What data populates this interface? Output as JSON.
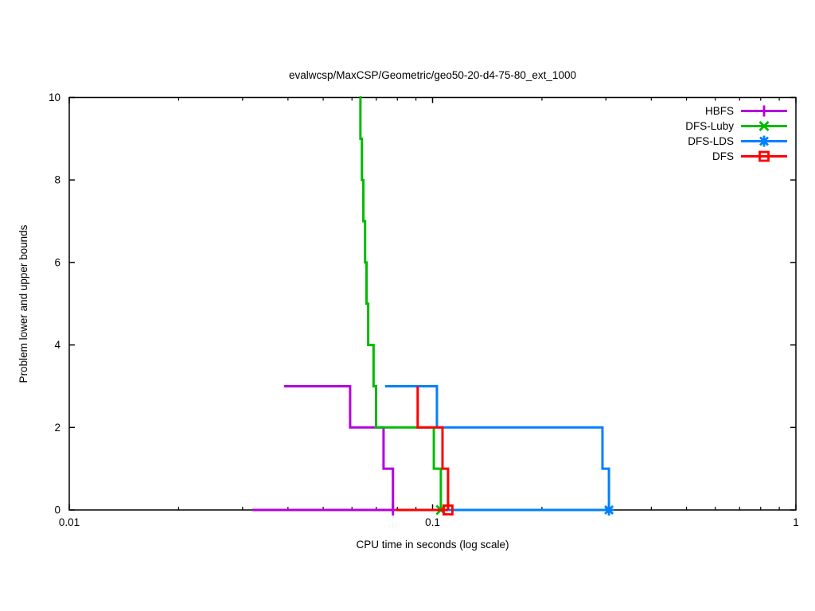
{
  "chart_data": {
    "type": "line",
    "title": "evalwcsp/MaxCSP/Geometric/geo50-20-d4-75-80_ext_1000",
    "xlabel": "CPU time in seconds (log scale)",
    "ylabel": "Problem lower and upper bounds",
    "x_scale": "log",
    "xlim": [
      0.01,
      1
    ],
    "ylim": [
      0,
      10
    ],
    "grid": false,
    "legend_position": "top-right-inside",
    "x_ticks": {
      "major_values": [
        0.01,
        0.1,
        1
      ],
      "major_labels": [
        "0.01",
        "0.1",
        "1"
      ],
      "minor_values": [
        0.02,
        0.03,
        0.04,
        0.05,
        0.06,
        0.07,
        0.08,
        0.09,
        0.2,
        0.3,
        0.4,
        0.5,
        0.6,
        0.7,
        0.8,
        0.9
      ]
    },
    "y_ticks": {
      "values": [
        0,
        2,
        4,
        6,
        8,
        10
      ],
      "labels": [
        "0",
        "2",
        "4",
        "6",
        "8",
        "10"
      ]
    },
    "series": [
      {
        "name": "HBFS",
        "color": "#b200de",
        "marker": "plus",
        "upper_bound": [
          [
            0.039,
            3
          ],
          [
            0.0593,
            3
          ],
          [
            0.0593,
            2
          ],
          [
            0.0733,
            2
          ],
          [
            0.0733,
            1
          ],
          [
            0.0778,
            1
          ],
          [
            0.0778,
            0
          ]
        ],
        "lower_bound": [
          [
            0.0319,
            0
          ],
          [
            0.0778,
            0
          ]
        ],
        "final_point": [
          0.0778,
          0
        ]
      },
      {
        "name": "DFS-Luby",
        "color": "#00bb00",
        "marker": "cross",
        "upper_bound": [
          [
            0.0629,
            10
          ],
          [
            0.0633,
            10
          ],
          [
            0.0633,
            9
          ],
          [
            0.0639,
            9
          ],
          [
            0.0639,
            8
          ],
          [
            0.0645,
            8
          ],
          [
            0.0645,
            7
          ],
          [
            0.0652,
            7
          ],
          [
            0.0652,
            6
          ],
          [
            0.0658,
            6
          ],
          [
            0.0658,
            5
          ],
          [
            0.0665,
            5
          ],
          [
            0.0665,
            4
          ],
          [
            0.0688,
            4
          ],
          [
            0.0688,
            3
          ],
          [
            0.0699,
            3
          ],
          [
            0.0699,
            2
          ],
          [
            0.1008,
            2
          ],
          [
            0.1008,
            1
          ],
          [
            0.1054,
            1
          ],
          [
            0.1054,
            0
          ]
        ],
        "lower_bound": [
          [
            0.1008,
            0
          ],
          [
            0.1054,
            0
          ]
        ],
        "final_point": [
          0.1054,
          0
        ]
      },
      {
        "name": "DFS-LDS",
        "color": "#0080ff",
        "marker": "asterisk",
        "upper_bound": [
          [
            0.074,
            3
          ],
          [
            0.1028,
            3
          ],
          [
            0.1028,
            2
          ],
          [
            0.2935,
            2
          ],
          [
            0.2935,
            1
          ],
          [
            0.3058,
            1
          ],
          [
            0.3058,
            0
          ]
        ],
        "lower_bound": [
          [
            0.0791,
            0
          ],
          [
            0.3058,
            0
          ]
        ],
        "final_point": [
          0.3058,
          0
        ]
      },
      {
        "name": "DFS",
        "color": "#ff0000",
        "marker": "square",
        "upper_bound": [
          [
            0.091,
            3
          ],
          [
            0.091,
            2
          ],
          [
            0.1065,
            2
          ],
          [
            0.1065,
            1
          ],
          [
            0.1103,
            1
          ],
          [
            0.1103,
            0
          ]
        ],
        "lower_bound": [
          [
            0.0791,
            0
          ],
          [
            0.1103,
            0
          ]
        ],
        "final_point": [
          0.1103,
          0
        ]
      }
    ]
  }
}
